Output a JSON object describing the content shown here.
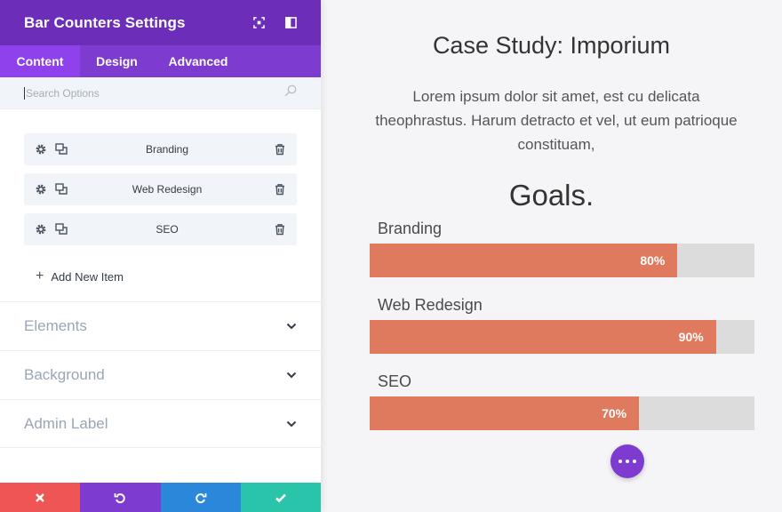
{
  "panel": {
    "title": "Bar Counters Settings",
    "header_icons": [
      "expand-icon",
      "sidebar-icon"
    ],
    "tabs": [
      {
        "label": "Content",
        "active": true
      },
      {
        "label": "Design",
        "active": false
      },
      {
        "label": "Advanced",
        "active": false
      }
    ],
    "search": {
      "placeholder": "Search Options",
      "value": ""
    },
    "items": [
      {
        "label": "Branding"
      },
      {
        "label": "Web Redesign"
      },
      {
        "label": "SEO"
      }
    ],
    "add_item_label": "Add New Item",
    "toggles": [
      {
        "title": "Elements"
      },
      {
        "title": "Background"
      },
      {
        "title": "Admin Label"
      }
    ],
    "footer": {
      "buttons": [
        "discard-icon",
        "undo-icon",
        "redo-icon",
        "save-icon"
      ]
    },
    "colors": {
      "header": "#6c2eb9",
      "tabs": "#7e3bd0",
      "active_tab": "#8f42ec",
      "discard": "#ef5555",
      "undo": "#7e3bd0",
      "redo": "#2b87da",
      "save": "#29c4a9"
    }
  },
  "preview": {
    "title": "Case Study: Imporium",
    "text": "Lorem ipsum dolor sit amet, est cu delicata theophrastus. Harum detracto et vel, ut eum patrioque constituam,",
    "goals_heading": "Goals.",
    "bars": [
      {
        "label": "Branding",
        "percent": 80,
        "percent_label": "80%"
      },
      {
        "label": "Web Redesign",
        "percent": 90,
        "percent_label": "90%"
      },
      {
        "label": "SEO",
        "percent": 70,
        "percent_label": "70%"
      }
    ],
    "colors": {
      "bar_fill": "#e07a5f",
      "bar_track": "#dcdcdc",
      "fab": "#7e3bd0"
    }
  }
}
